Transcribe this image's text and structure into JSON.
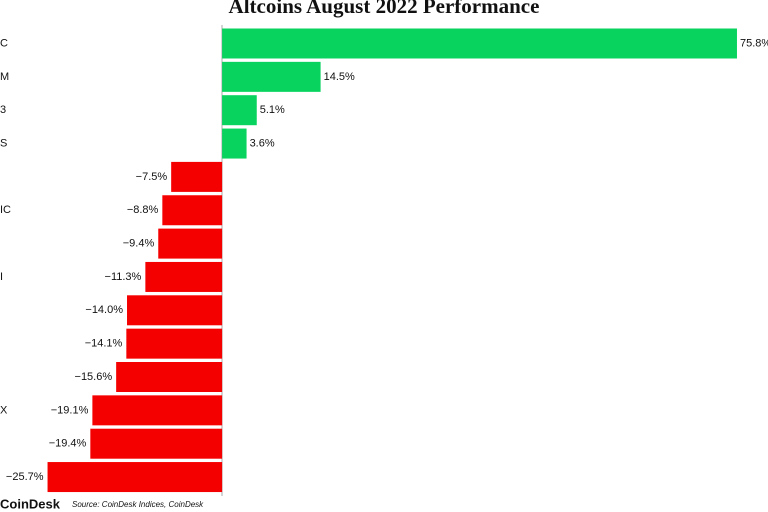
{
  "chart_data": {
    "type": "hbar",
    "title": "Altcoins August 2022 Performance",
    "categories": [
      "C",
      "M",
      "3",
      "S",
      null,
      "IC",
      null,
      "I",
      null,
      null,
      null,
      "X",
      null,
      null
    ],
    "values": [
      75.8,
      14.5,
      5.1,
      3.6,
      -7.5,
      -8.8,
      -9.4,
      -11.3,
      -14.0,
      -14.1,
      -15.6,
      -19.1,
      -19.4,
      -25.7
    ],
    "value_labels": [
      "75.8%",
      "14.5%",
      "5.1%",
      "3.6%",
      "−7.5%",
      "−8.8%",
      "−9.4%",
      "−11.3%",
      "−14.0%",
      "−14.1%",
      "−15.6%",
      "−19.1%",
      "−19.4%",
      "−25.7%"
    ],
    "colors": [
      "#08d35f",
      "#08d35f",
      "#08d35f",
      "#08d35f",
      "#f50000",
      "#f50000",
      "#f50000",
      "#f50000",
      "#f50000",
      "#f50000",
      "#f50000",
      "#f50000",
      "#f50000",
      "#f50000"
    ],
    "xlim": [
      -32.7,
      80
    ],
    "brand": "CoinDesk",
    "source": "Source: CoinDesk Indices, CoinDesk"
  }
}
